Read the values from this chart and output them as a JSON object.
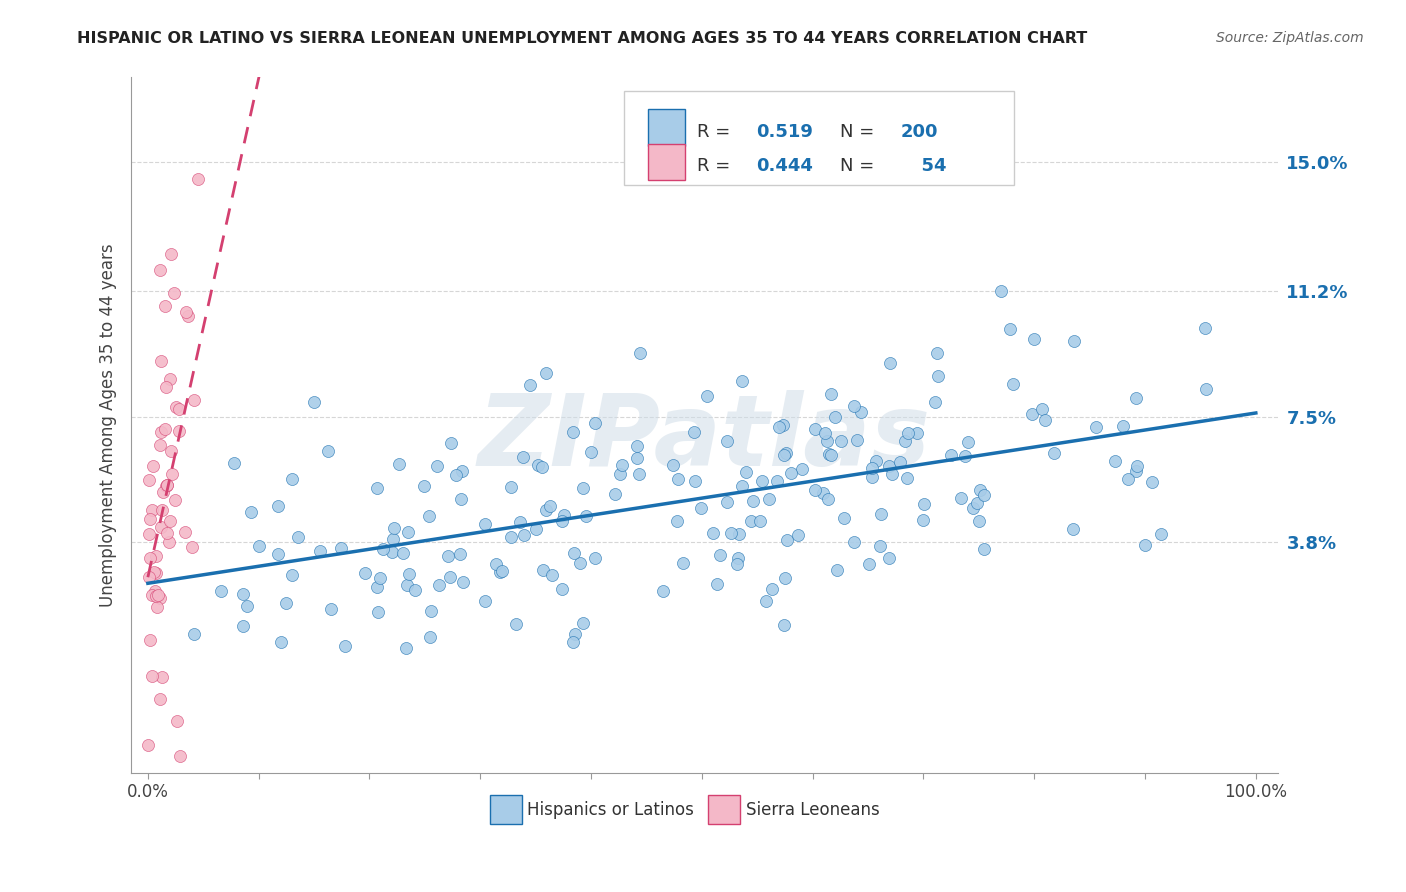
{
  "title": "HISPANIC OR LATINO VS SIERRA LEONEAN UNEMPLOYMENT AMONG AGES 35 TO 44 YEARS CORRELATION CHART",
  "source": "Source: ZipAtlas.com",
  "ylabel": "Unemployment Among Ages 35 to 44 years",
  "yticks": [
    0.038,
    0.075,
    0.112,
    0.15
  ],
  "ytick_labels": [
    "3.8%",
    "7.5%",
    "11.2%",
    "15.0%"
  ],
  "xticks": [
    0.0,
    0.1,
    0.2,
    0.3,
    0.4,
    0.5,
    0.6,
    0.7,
    0.8,
    0.9,
    1.0
  ],
  "xtick_labels": [
    "0.0%",
    "",
    "",
    "",
    "",
    "",
    "",
    "",
    "",
    "",
    "100.0%"
  ],
  "blue_scatter_color": "#a8cce8",
  "pink_scatter_color": "#f4b8c8",
  "trend_blue": "#1a6faf",
  "trend_pink": "#d44070",
  "R_blue": 0.519,
  "N_blue": 200,
  "R_pink": 0.444,
  "N_pink": 54,
  "watermark": "ZIPatlas",
  "legend_labels": [
    "Hispanics or Latinos",
    "Sierra Leoneans"
  ],
  "background_color": "#ffffff",
  "grid_color": "#cccccc"
}
